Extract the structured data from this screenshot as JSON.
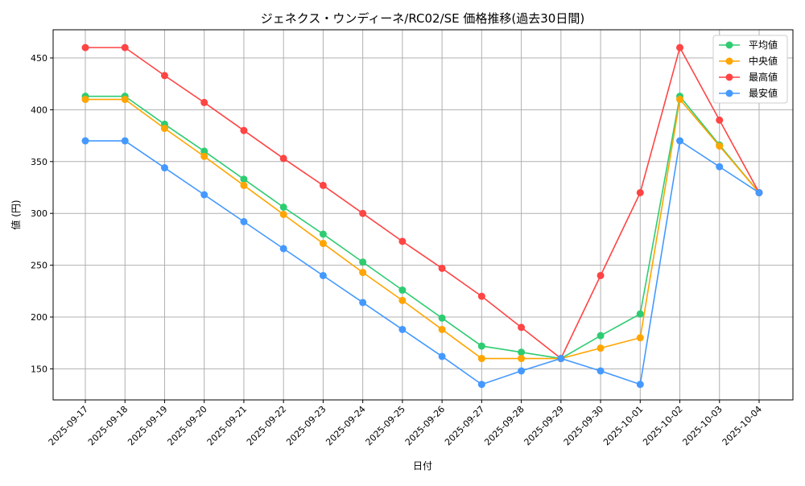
{
  "chart_data": {
    "type": "line",
    "title": "ジェネクス・ウンディーネ/RC02/SE 価格推移(過去30日間)",
    "xlabel": "日付",
    "ylabel": "値 (円)",
    "ylim": [
      120,
      475
    ],
    "yticks": [
      150,
      200,
      250,
      300,
      350,
      400,
      450
    ],
    "grid": true,
    "legend_position": "top-right",
    "categories": [
      "2025-09-17",
      "2025-09-18",
      "2025-09-19",
      "2025-09-20",
      "2025-09-21",
      "2025-09-22",
      "2025-09-23",
      "2025-09-24",
      "2025-09-25",
      "2025-09-26",
      "2025-09-27",
      "2025-09-28",
      "2025-09-29",
      "2025-09-30",
      "2025-10-01",
      "2025-10-02",
      "2025-10-03",
      "2025-10-04"
    ],
    "series": [
      {
        "name": "平均値",
        "color": "#2ecc71",
        "values": [
          413,
          413,
          386,
          360,
          333,
          306,
          280,
          253,
          226,
          199,
          172,
          166,
          160,
          182,
          203,
          413,
          366,
          320
        ]
      },
      {
        "name": "中央値",
        "color": "#ffa500",
        "values": [
          410,
          410,
          382,
          355,
          327,
          299,
          271,
          243,
          216,
          188,
          160,
          160,
          160,
          170,
          180,
          410,
          365,
          320
        ]
      },
      {
        "name": "最高値",
        "color": "#ff4444",
        "values": [
          460,
          460,
          433,
          407,
          380,
          353,
          327,
          300,
          273,
          247,
          220,
          190,
          160,
          240,
          320,
          460,
          390,
          320
        ]
      },
      {
        "name": "最安値",
        "color": "#4499ff",
        "values": [
          370,
          370,
          344,
          318,
          292,
          266,
          240,
          214,
          188,
          162,
          135,
          148,
          160,
          148,
          135,
          370,
          345,
          320
        ]
      }
    ]
  }
}
